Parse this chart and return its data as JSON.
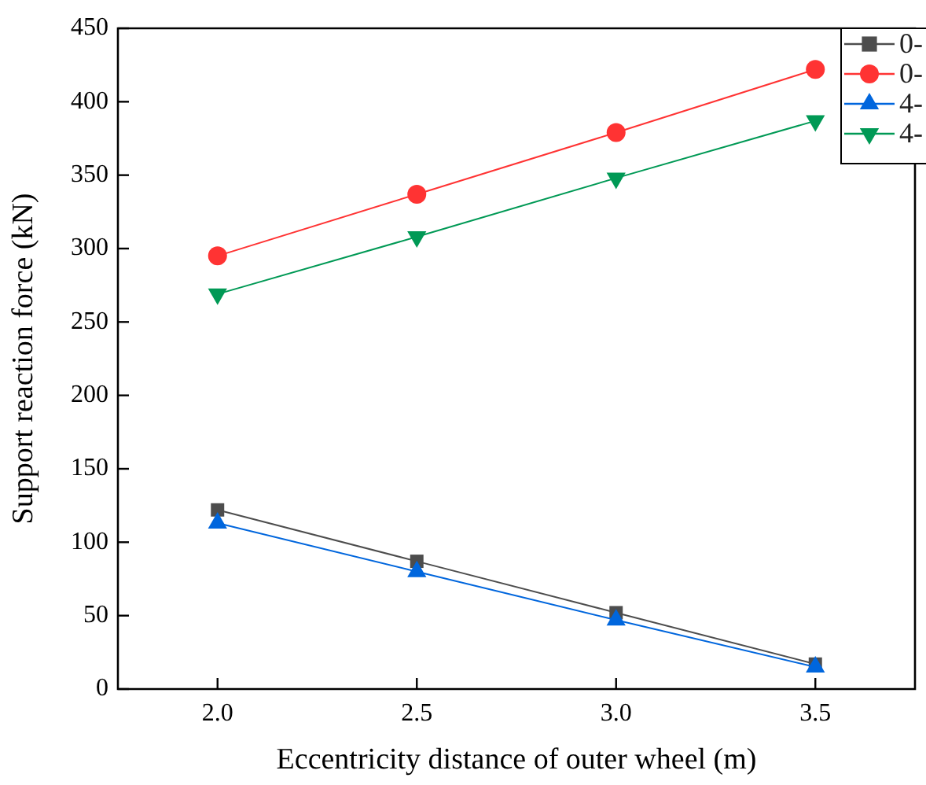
{
  "chart_data": {
    "type": "line",
    "xlabel": "Eccentricity distance of outer wheel (m)",
    "ylabel": "Support reaction force (kN)",
    "x": [
      2.0,
      2.5,
      3.0,
      3.5
    ],
    "series": [
      {
        "name": "0-",
        "color": "#4d4d4d",
        "marker": "square",
        "values": [
          122,
          87,
          52,
          17
        ]
      },
      {
        "name": "0-",
        "color": "#ff3333",
        "marker": "circle",
        "values": [
          295,
          337,
          379,
          422
        ]
      },
      {
        "name": "4-",
        "color": "#0066dd",
        "marker": "triangle",
        "values": [
          113,
          80,
          47,
          15
        ]
      },
      {
        "name": "4-",
        "color": "#009955",
        "marker": "triangle_down",
        "values": [
          269,
          308,
          348,
          387
        ]
      }
    ],
    "xlim": [
      1.75,
      3.75
    ],
    "xticks": [
      {
        "value": 2.0,
        "label": "2.0"
      },
      {
        "value": 2.5,
        "label": "2.5"
      },
      {
        "value": 3.0,
        "label": "3.0"
      },
      {
        "value": 3.5,
        "label": "3.5"
      }
    ],
    "ylim": [
      0,
      450
    ],
    "yticks": [
      0,
      50,
      100,
      150,
      200,
      250,
      300,
      350,
      400,
      450
    ],
    "grid": false,
    "legend": "top right",
    "line_style": "solid"
  }
}
